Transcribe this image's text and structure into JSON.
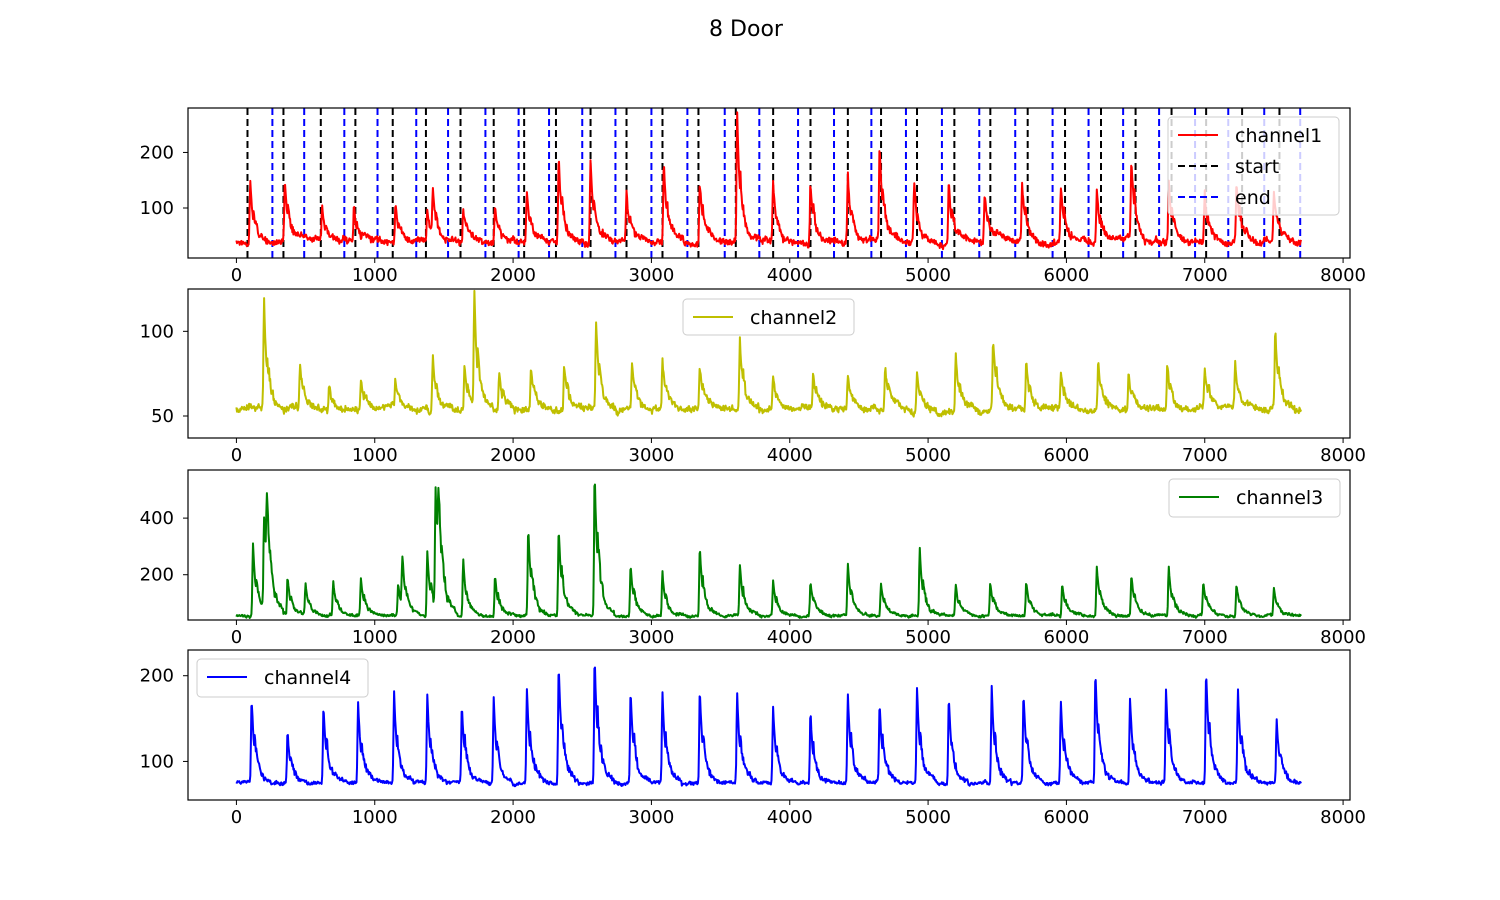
{
  "figure": {
    "title": "8 Door"
  },
  "chart_data": [
    {
      "type": "line",
      "series": [
        {
          "name": "channel1",
          "color": "#ff0000"
        },
        {
          "name": "start",
          "color": "#000000",
          "style": "dashed"
        },
        {
          "name": "end",
          "color": "#0000ff",
          "style": "dashed"
        }
      ],
      "legend_loc": "upper right",
      "xlim": [
        -350,
        8050
      ],
      "ylim": [
        10,
        280
      ],
      "xticks": [
        "0",
        "1000",
        "2000",
        "3000",
        "4000",
        "5000",
        "6000",
        "7000",
        "8000"
      ],
      "yticks": [
        "100",
        "200"
      ],
      "data": {
        "n_points": 7700,
        "baseline": 40,
        "noise": 9,
        "peaks": [
          [
            100,
            150
          ],
          [
            350,
            145
          ],
          [
            620,
            100
          ],
          [
            850,
            110
          ],
          [
            1150,
            115
          ],
          [
            1380,
            100
          ],
          [
            1420,
            120
          ],
          [
            1640,
            100
          ],
          [
            1870,
            110
          ],
          [
            2100,
            130
          ],
          [
            2330,
            200
          ],
          [
            2560,
            190
          ],
          [
            2820,
            125
          ],
          [
            3090,
            180
          ],
          [
            3350,
            150
          ],
          [
            3620,
            270
          ],
          [
            3880,
            150
          ],
          [
            4150,
            150
          ],
          [
            4420,
            160
          ],
          [
            4650,
            210
          ],
          [
            4900,
            150
          ],
          [
            5150,
            150
          ],
          [
            5410,
            130
          ],
          [
            5680,
            145
          ],
          [
            5960,
            140
          ],
          [
            6220,
            140
          ],
          [
            6470,
            180
          ],
          [
            6740,
            150
          ],
          [
            7000,
            130
          ],
          [
            7230,
            145
          ],
          [
            7500,
            130
          ]
        ],
        "start_lines": [
          80,
          340,
          610,
          860,
          1130,
          1370,
          1620,
          1860,
          2080,
          2310,
          2560,
          2820,
          3080,
          3340,
          3610,
          3880,
          4150,
          4420,
          4660,
          4920,
          5190,
          5450,
          5720,
          5990,
          6250,
          6500,
          6760,
          7010,
          7270,
          7540
        ],
        "end_lines": [
          260,
          490,
          780,
          1020,
          1300,
          1530,
          1800,
          2040,
          2260,
          2500,
          2740,
          3000,
          3260,
          3530,
          3780,
          4060,
          4320,
          4590,
          4840,
          5100,
          5370,
          5630,
          5900,
          6160,
          6410,
          6670,
          6930,
          7170,
          7430,
          7690
        ]
      }
    },
    {
      "type": "line",
      "series": [
        {
          "name": "channel2",
          "color": "#bfbf00"
        }
      ],
      "legend_loc": "upper center",
      "xlim": [
        -350,
        8050
      ],
      "ylim": [
        37,
        125
      ],
      "xticks": [
        "0",
        "1000",
        "2000",
        "3000",
        "4000",
        "5000",
        "6000",
        "7000",
        "8000"
      ],
      "yticks": [
        "50",
        "100"
      ],
      "data": {
        "n_points": 7700,
        "baseline": 54,
        "noise": 3,
        "peaks": [
          [
            200,
            117
          ],
          [
            460,
            80
          ],
          [
            670,
            70
          ],
          [
            900,
            72
          ],
          [
            1150,
            72
          ],
          [
            1420,
            88
          ],
          [
            1650,
            82
          ],
          [
            1720,
            121
          ],
          [
            1900,
            78
          ],
          [
            2130,
            78
          ],
          [
            2370,
            82
          ],
          [
            2600,
            105
          ],
          [
            2860,
            80
          ],
          [
            3080,
            82
          ],
          [
            3350,
            80
          ],
          [
            3640,
            95
          ],
          [
            3880,
            74
          ],
          [
            4170,
            75
          ],
          [
            4420,
            74
          ],
          [
            4690,
            82
          ],
          [
            4920,
            78
          ],
          [
            5200,
            88
          ],
          [
            5470,
            95
          ],
          [
            5710,
            82
          ],
          [
            5960,
            76
          ],
          [
            6230,
            84
          ],
          [
            6450,
            78
          ],
          [
            6730,
            82
          ],
          [
            7000,
            78
          ],
          [
            7220,
            80
          ],
          [
            7510,
            100
          ]
        ]
      }
    },
    {
      "type": "line",
      "series": [
        {
          "name": "channel3",
          "color": "#008000"
        }
      ],
      "legend_loc": "upper right",
      "xlim": [
        -350,
        8050
      ],
      "ylim": [
        40,
        570
      ],
      "xticks": [
        "0",
        "1000",
        "2000",
        "3000",
        "4000",
        "5000",
        "6000",
        "7000",
        "8000"
      ],
      "yticks": [
        "200",
        "400"
      ],
      "data": {
        "n_points": 7700,
        "baseline": 55,
        "noise": 7,
        "peaks": [
          [
            120,
            310
          ],
          [
            200,
            375
          ],
          [
            220,
            340
          ],
          [
            370,
            200
          ],
          [
            500,
            160
          ],
          [
            700,
            180
          ],
          [
            900,
            190
          ],
          [
            1170,
            170
          ],
          [
            1200,
            220
          ],
          [
            1380,
            290
          ],
          [
            1440,
            470
          ],
          [
            1460,
            310
          ],
          [
            1640,
            260
          ],
          [
            1870,
            200
          ],
          [
            2110,
            365
          ],
          [
            2330,
            370
          ],
          [
            2590,
            555
          ],
          [
            2850,
            235
          ],
          [
            3080,
            210
          ],
          [
            3350,
            300
          ],
          [
            3640,
            235
          ],
          [
            3880,
            175
          ],
          [
            4150,
            175
          ],
          [
            4420,
            245
          ],
          [
            4660,
            170
          ],
          [
            4940,
            295
          ],
          [
            5200,
            165
          ],
          [
            5450,
            170
          ],
          [
            5710,
            175
          ],
          [
            5970,
            170
          ],
          [
            6220,
            230
          ],
          [
            6470,
            205
          ],
          [
            6740,
            230
          ],
          [
            6990,
            170
          ],
          [
            7230,
            170
          ],
          [
            7500,
            155
          ]
        ]
      }
    },
    {
      "type": "line",
      "series": [
        {
          "name": "channel4",
          "color": "#0000ff"
        }
      ],
      "legend_loc": "upper left",
      "xlim": [
        -350,
        8050
      ],
      "ylim": [
        55,
        230
      ],
      "xticks": [
        "0",
        "1000",
        "2000",
        "3000",
        "4000",
        "5000",
        "6000",
        "7000",
        "8000"
      ],
      "yticks": [
        "100",
        "200"
      ],
      "data": {
        "n_points": 7700,
        "baseline": 75,
        "noise": 3,
        "peaks": [
          [
            110,
            175
          ],
          [
            370,
            135
          ],
          [
            630,
            165
          ],
          [
            880,
            168
          ],
          [
            1140,
            180
          ],
          [
            1380,
            178
          ],
          [
            1630,
            165
          ],
          [
            1860,
            175
          ],
          [
            2100,
            185
          ],
          [
            2330,
            215
          ],
          [
            2590,
            222
          ],
          [
            2850,
            185
          ],
          [
            3080,
            180
          ],
          [
            3350,
            185
          ],
          [
            3620,
            178
          ],
          [
            3880,
            165
          ],
          [
            4150,
            160
          ],
          [
            4420,
            178
          ],
          [
            4650,
            165
          ],
          [
            4920,
            185
          ],
          [
            5150,
            175
          ],
          [
            5460,
            190
          ],
          [
            5690,
            182
          ],
          [
            5960,
            170
          ],
          [
            6210,
            205
          ],
          [
            6460,
            175
          ],
          [
            6720,
            185
          ],
          [
            7010,
            205
          ],
          [
            7240,
            182
          ],
          [
            7520,
            150
          ]
        ]
      }
    }
  ]
}
